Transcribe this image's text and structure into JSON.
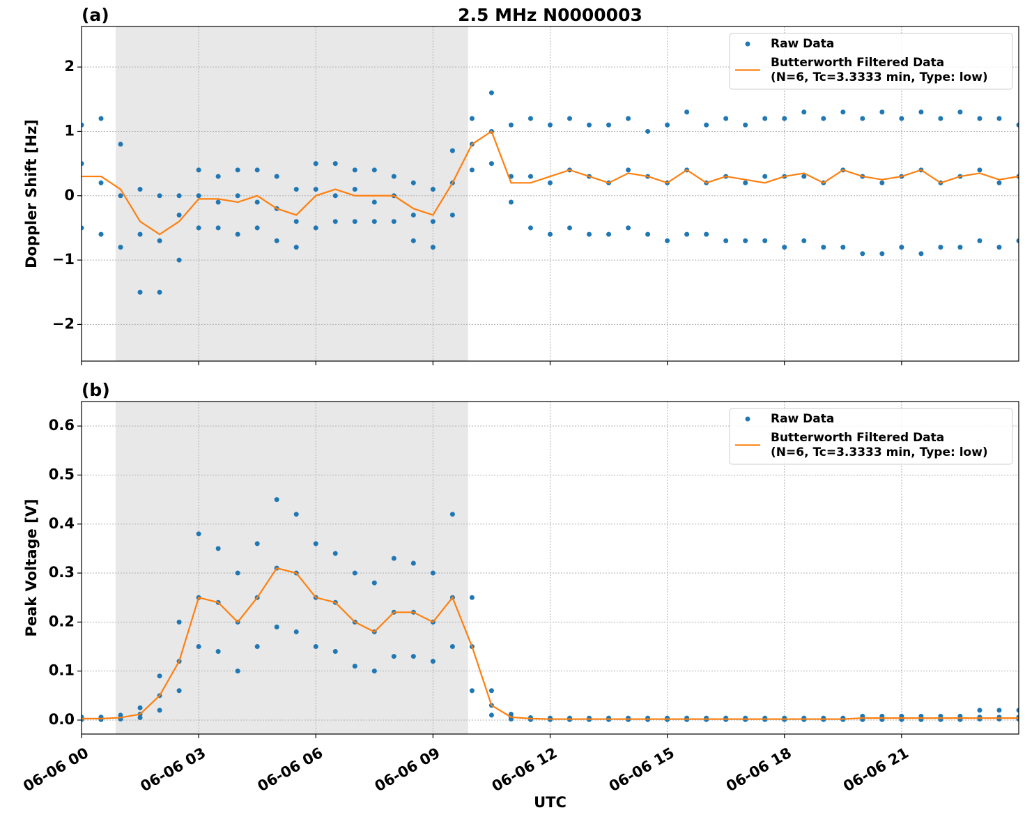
{
  "chart_data": [
    {
      "type": "scatter",
      "title": "2.5 MHz N0000003",
      "panel_label": "(a)",
      "ylabel": "Doppler Shift [Hz]",
      "xlim": [
        0,
        24
      ],
      "ylim": [
        -2.57,
        2.63
      ],
      "yticks": [
        {
          "value": -2,
          "label": "−2"
        },
        {
          "value": -1,
          "label": "−1"
        },
        0,
        1,
        2
      ],
      "grid": true,
      "legend": "upper right",
      "shaded_span": [
        0.875,
        9.9
      ],
      "shaded_color": "#e8e8e8",
      "x": [
        0,
        0.5,
        1,
        1.5,
        2,
        2.5,
        3,
        3.5,
        4,
        4.5,
        5,
        5.5,
        6,
        6.5,
        7,
        7.5,
        8,
        8.5,
        9,
        9.5,
        10,
        10.5,
        11,
        11.5,
        12,
        12.5,
        13,
        13.5,
        14,
        14.5,
        15,
        15.5,
        16,
        16.5,
        17,
        17.5,
        18,
        18.5,
        19,
        19.5,
        20,
        20.5,
        21,
        21.5,
        22,
        22.5,
        23,
        23.5,
        24
      ],
      "series": [
        {
          "name": "Raw Data",
          "type": "scatter",
          "color": "#1f77b4",
          "values": [
            [
              1.1,
              0.5,
              -0.5
            ],
            [
              1.2,
              0.2,
              -0.6
            ],
            [
              0.8,
              0.0,
              -0.8
            ],
            [
              0.1,
              -0.6,
              -1.5
            ],
            [
              0.0,
              -0.7,
              -1.5
            ],
            [
              0.0,
              -0.3,
              -1.0
            ],
            [
              0.4,
              0.0,
              -0.5
            ],
            [
              0.3,
              -0.1,
              -0.5
            ],
            [
              0.4,
              0.0,
              -0.6
            ],
            [
              0.4,
              -0.1,
              -0.5
            ],
            [
              0.3,
              -0.2,
              -0.7
            ],
            [
              0.1,
              -0.4,
              -0.8
            ],
            [
              0.5,
              0.1,
              -0.5
            ],
            [
              0.5,
              0.0,
              -0.4
            ],
            [
              0.4,
              0.1,
              -0.4
            ],
            [
              0.4,
              -0.1,
              -0.4
            ],
            [
              0.3,
              0.0,
              -0.4
            ],
            [
              0.2,
              -0.3,
              -0.7
            ],
            [
              0.1,
              -0.4,
              -0.8
            ],
            [
              0.7,
              0.2,
              -0.3
            ],
            [
              1.2,
              0.8,
              0.4
            ],
            [
              1.6,
              1.0,
              0.5
            ],
            [
              1.1,
              0.3,
              -0.1
            ],
            [
              1.2,
              0.3,
              -0.5
            ],
            [
              1.1,
              0.2,
              -0.6
            ],
            [
              1.2,
              0.4,
              -0.5
            ],
            [
              1.1,
              0.3,
              -0.6
            ],
            [
              1.1,
              0.2,
              -0.6
            ],
            [
              1.2,
              0.4,
              -0.5
            ],
            [
              1.0,
              0.3,
              -0.6
            ],
            [
              1.1,
              0.2,
              -0.7
            ],
            [
              1.3,
              0.4,
              -0.6
            ],
            [
              1.1,
              0.2,
              -0.6
            ],
            [
              1.2,
              0.3,
              -0.7
            ],
            [
              1.1,
              0.2,
              -0.7
            ],
            [
              1.2,
              0.3,
              -0.7
            ],
            [
              1.2,
              0.3,
              -0.8
            ],
            [
              1.3,
              0.3,
              -0.7
            ],
            [
              1.2,
              0.2,
              -0.8
            ],
            [
              1.3,
              0.4,
              -0.8
            ],
            [
              1.2,
              0.3,
              -0.9
            ],
            [
              1.3,
              0.2,
              -0.9
            ],
            [
              1.2,
              0.3,
              -0.8
            ],
            [
              1.3,
              0.4,
              -0.9
            ],
            [
              1.2,
              0.2,
              -0.8
            ],
            [
              1.3,
              0.3,
              -0.8
            ],
            [
              1.2,
              0.4,
              -0.7
            ],
            [
              1.2,
              0.2,
              -0.8
            ],
            [
              1.1,
              0.3,
              -0.7
            ]
          ]
        },
        {
          "name": "Butterworth Filtered Data\n(N=6, Tc=3.3333 min, Type: low)",
          "type": "line",
          "color": "#ff7f0e",
          "values": [
            0.3,
            0.3,
            0.1,
            -0.4,
            -0.6,
            -0.4,
            -0.05,
            -0.05,
            -0.1,
            0.0,
            -0.2,
            -0.3,
            0.0,
            0.1,
            0.0,
            0.0,
            0.0,
            -0.2,
            -0.3,
            0.2,
            0.8,
            1.0,
            0.2,
            0.2,
            0.3,
            0.4,
            0.3,
            0.2,
            0.35,
            0.3,
            0.2,
            0.4,
            0.2,
            0.3,
            0.25,
            0.2,
            0.3,
            0.35,
            0.2,
            0.4,
            0.3,
            0.25,
            0.3,
            0.4,
            0.2,
            0.3,
            0.35,
            0.25,
            0.3
          ]
        }
      ]
    },
    {
      "type": "scatter",
      "panel_label": "(b)",
      "ylabel": "Peak Voltage [V]",
      "xlabel": "UTC",
      "xlim": [
        0,
        24
      ],
      "ylim": [
        -0.0285,
        0.65
      ],
      "xticks": [
        {
          "value": 0,
          "label": "06-06 00"
        },
        {
          "value": 3,
          "label": "06-06 03"
        },
        {
          "value": 6,
          "label": "06-06 06"
        },
        {
          "value": 9,
          "label": "06-06 09"
        },
        {
          "value": 12,
          "label": "06-06 12"
        },
        {
          "value": 15,
          "label": "06-06 15"
        },
        {
          "value": 18,
          "label": "06-06 18"
        },
        {
          "value": 21,
          "label": "06-06 21"
        }
      ],
      "yticks": [
        {
          "value": 0,
          "label": "0.0"
        },
        0.1,
        0.2,
        0.3,
        0.4,
        0.5,
        0.6
      ],
      "grid": true,
      "legend": "upper right",
      "shaded_span": [
        0.875,
        9.9
      ],
      "shaded_color": "#e8e8e8",
      "x": [
        0,
        0.5,
        1,
        1.5,
        2,
        2.5,
        3,
        3.5,
        4,
        4.5,
        5,
        5.5,
        6,
        6.5,
        7,
        7.5,
        8,
        8.5,
        9,
        9.5,
        10,
        10.5,
        11,
        11.5,
        12,
        12.5,
        13,
        13.5,
        14,
        14.5,
        15,
        15.5,
        16,
        16.5,
        17,
        17.5,
        18,
        18.5,
        19,
        19.5,
        20,
        20.5,
        21,
        21.5,
        22,
        22.5,
        23,
        23.5,
        24
      ],
      "series": [
        {
          "name": "Raw Data",
          "type": "scatter",
          "color": "#1f77b4",
          "values": [
            [
              0.006,
              0.003,
              0.001
            ],
            [
              0.006,
              0.003,
              0.001
            ],
            [
              0.01,
              0.005,
              0.002
            ],
            [
              0.025,
              0.012,
              0.005
            ],
            [
              0.09,
              0.05,
              0.02
            ],
            [
              0.2,
              0.12,
              0.06
            ],
            [
              0.38,
              0.25,
              0.15
            ],
            [
              0.35,
              0.24,
              0.14
            ],
            [
              0.3,
              0.2,
              0.1
            ],
            [
              0.36,
              0.25,
              0.15
            ],
            [
              0.45,
              0.31,
              0.19
            ],
            [
              0.42,
              0.3,
              0.18
            ],
            [
              0.36,
              0.25,
              0.15
            ],
            [
              0.34,
              0.24,
              0.14
            ],
            [
              0.3,
              0.2,
              0.11
            ],
            [
              0.28,
              0.18,
              0.1
            ],
            [
              0.33,
              0.22,
              0.13
            ],
            [
              0.32,
              0.22,
              0.13
            ],
            [
              0.3,
              0.2,
              0.12
            ],
            [
              0.42,
              0.25,
              0.15
            ],
            [
              0.25,
              0.15,
              0.06
            ],
            [
              0.06,
              0.03,
              0.01
            ],
            [
              0.012,
              0.006,
              0.002
            ],
            [
              0.005,
              0.003,
              0.001
            ],
            [
              0.004,
              0.002,
              0.001
            ],
            [
              0.004,
              0.002,
              0.001
            ],
            [
              0.004,
              0.002,
              0.001
            ],
            [
              0.004,
              0.002,
              0.001
            ],
            [
              0.004,
              0.002,
              0.001
            ],
            [
              0.004,
              0.002,
              0.001
            ],
            [
              0.004,
              0.002,
              0.001
            ],
            [
              0.004,
              0.002,
              0.001
            ],
            [
              0.004,
              0.002,
              0.001
            ],
            [
              0.004,
              0.002,
              0.001
            ],
            [
              0.004,
              0.002,
              0.001
            ],
            [
              0.004,
              0.002,
              0.001
            ],
            [
              0.004,
              0.002,
              0.001
            ],
            [
              0.004,
              0.002,
              0.001
            ],
            [
              0.004,
              0.002,
              0.001
            ],
            [
              0.004,
              0.002,
              0.001
            ],
            [
              0.008,
              0.004,
              0.001
            ],
            [
              0.008,
              0.004,
              0.001
            ],
            [
              0.008,
              0.004,
              0.001
            ],
            [
              0.008,
              0.004,
              0.001
            ],
            [
              0.008,
              0.004,
              0.001
            ],
            [
              0.008,
              0.004,
              0.001
            ],
            [
              0.02,
              0.006,
              0.002
            ],
            [
              0.02,
              0.006,
              0.002
            ],
            [
              0.02,
              0.006,
              0.002
            ]
          ]
        },
        {
          "name": "Butterworth Filtered Data\n(N=6, Tc=3.3333 min, Type: low)",
          "type": "line",
          "color": "#ff7f0e",
          "values": [
            0.003,
            0.003,
            0.005,
            0.012,
            0.05,
            0.12,
            0.25,
            0.24,
            0.2,
            0.25,
            0.31,
            0.3,
            0.25,
            0.24,
            0.2,
            0.18,
            0.22,
            0.22,
            0.2,
            0.25,
            0.15,
            0.03,
            0.006,
            0.003,
            0.002,
            0.002,
            0.002,
            0.002,
            0.002,
            0.002,
            0.002,
            0.002,
            0.002,
            0.002,
            0.002,
            0.002,
            0.002,
            0.002,
            0.002,
            0.002,
            0.004,
            0.004,
            0.004,
            0.004,
            0.004,
            0.004,
            0.004,
            0.004,
            0.004
          ]
        }
      ]
    }
  ]
}
